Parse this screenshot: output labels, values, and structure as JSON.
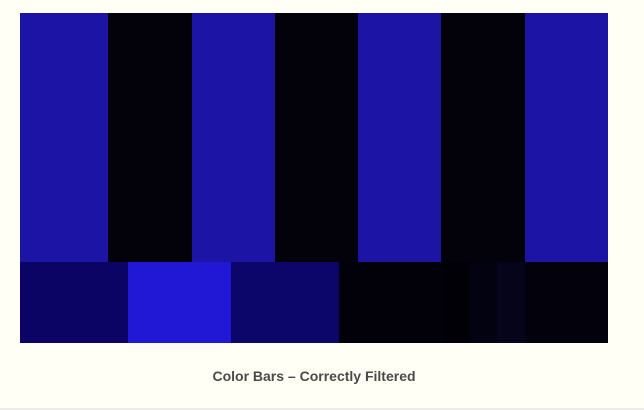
{
  "caption": "Color Bars – Correctly Filtered",
  "colors": {
    "page_background": "#fffff5",
    "bottom_rule": "#ececec",
    "caption_text": "#4a4a4a"
  },
  "top_bars": [
    {
      "name": "bar-blue-1",
      "color": "#1b14a5"
    },
    {
      "name": "bar-black-1",
      "color": "#03020a"
    },
    {
      "name": "bar-blue-2",
      "color": "#1b14a5"
    },
    {
      "name": "bar-black-2",
      "color": "#03020a"
    },
    {
      "name": "bar-blue-3",
      "color": "#1b14a5"
    },
    {
      "name": "bar-black-3",
      "color": "#03020a"
    },
    {
      "name": "bar-blue-4",
      "color": "#1b14a5"
    }
  ],
  "bottom_bars": [
    {
      "name": "pluge-dark-navy",
      "color": "#0b0464"
    },
    {
      "name": "pluge-bright-blue",
      "color": "#2118d5"
    },
    {
      "name": "pluge-navy",
      "color": "#0d066a"
    },
    {
      "name": "pluge-black",
      "color": "#02010a"
    },
    {
      "name": "pluge-sub-black",
      "color": "#010006"
    },
    {
      "name": "pluge-black-mid",
      "color": "#030210"
    },
    {
      "name": "pluge-super-black",
      "color": "#05041a"
    },
    {
      "name": "pluge-black-end",
      "color": "#03020c"
    }
  ]
}
